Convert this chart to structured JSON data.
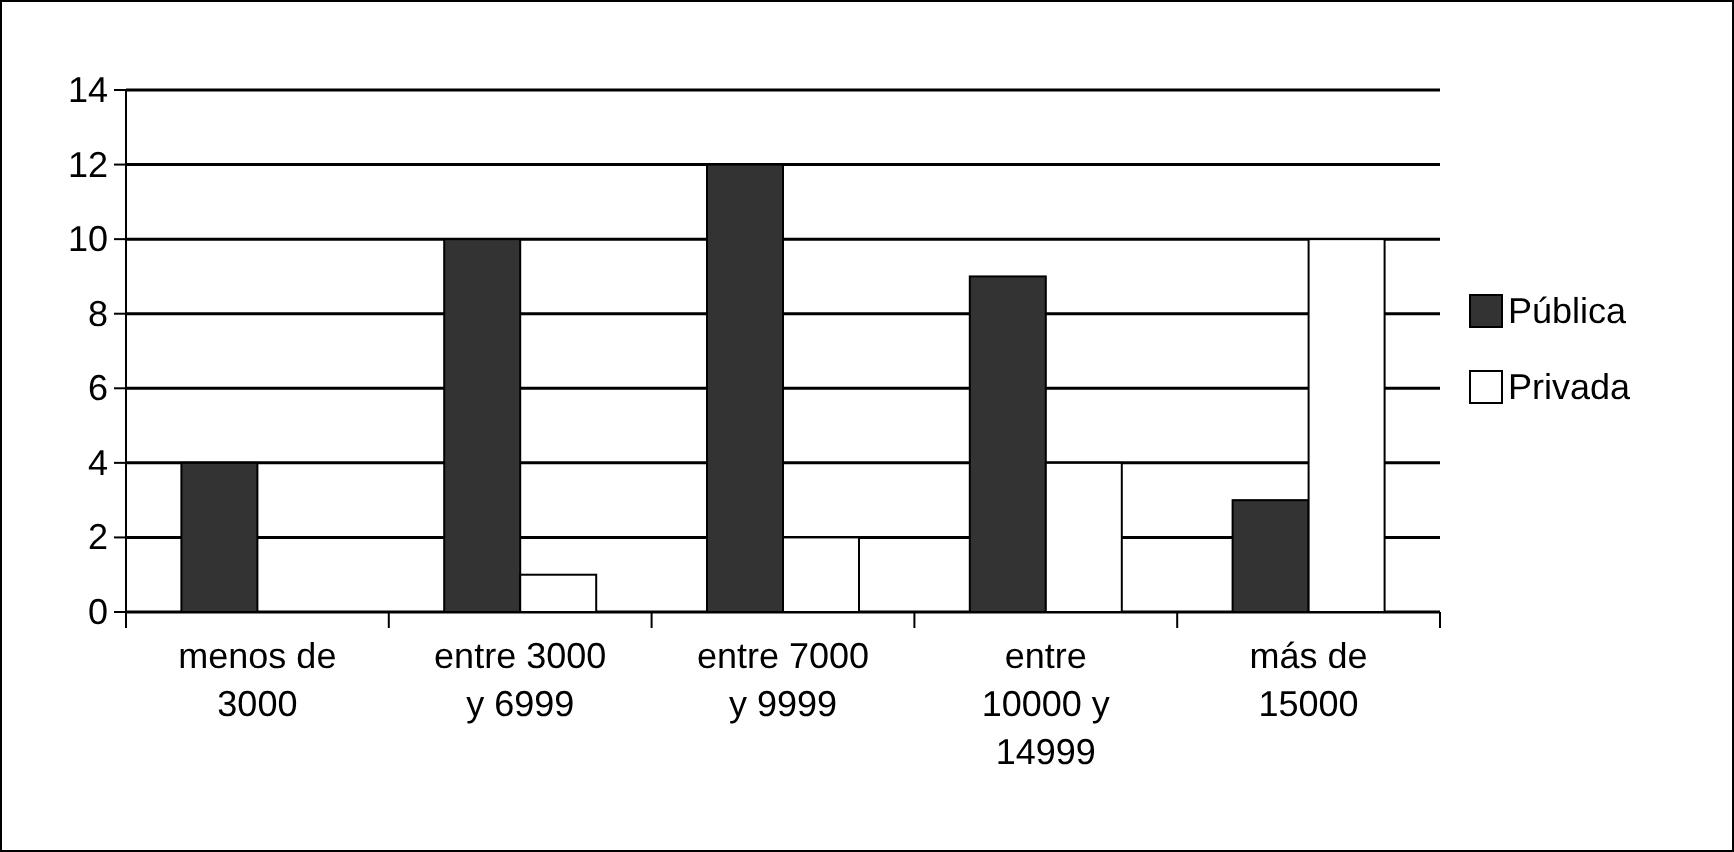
{
  "chart_data": {
    "type": "bar",
    "categories": [
      "menos de 3000",
      "entre 3000 y 6999",
      "entre 7000 y 9999",
      "entre 10000 y 14999",
      "más de 15000"
    ],
    "series": [
      {
        "name": "Pública",
        "color": "#333333",
        "values": [
          4,
          10,
          12,
          9,
          3
        ]
      },
      {
        "name": "Privada",
        "color": "#ffffff",
        "values": [
          0,
          1,
          2,
          4,
          10
        ]
      }
    ],
    "ylim": [
      0,
      14
    ],
    "yticks": [
      0,
      2,
      4,
      6,
      8,
      10,
      12,
      14
    ],
    "grid": "y",
    "legend": "right"
  }
}
